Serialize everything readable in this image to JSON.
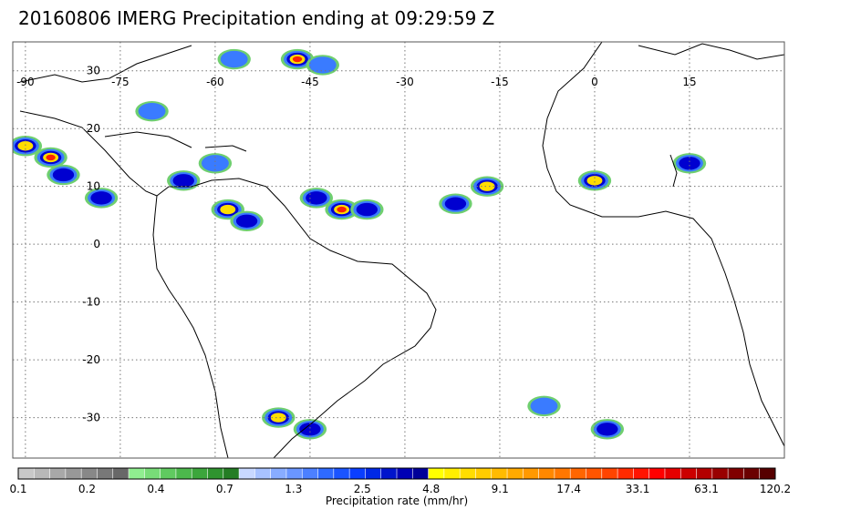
{
  "title": "20160806 IMERG Precipitation ending at 09:29:59 Z",
  "map": {
    "lon_labels": [
      "-90",
      "-75",
      "-60",
      "-45",
      "-30",
      "-15",
      "0",
      "15"
    ],
    "lat_labels": [
      "30",
      "20",
      "10",
      "0",
      "-10",
      "-20",
      "-30"
    ],
    "lon_values": [
      -90,
      -75,
      -60,
      -45,
      -30,
      -15,
      0,
      15
    ],
    "lat_values": [
      30,
      20,
      10,
      0,
      -10,
      -20,
      -30
    ],
    "lon_range": [
      -92,
      30
    ],
    "lat_range": [
      35,
      -37
    ],
    "land_color": "#ffffff",
    "coast_color": "#000000",
    "grid_color": "#777777"
  },
  "colorbar": {
    "label": "Precipitation rate (mm/hr)",
    "tick_labels": [
      "0.1",
      "0.2",
      "0.4",
      "0.7",
      "1.3",
      "2.5",
      "4.8",
      "9.1",
      "17.4",
      "33.1",
      "63.1",
      "120.2"
    ],
    "colors": [
      "#c8c8c8",
      "#b8b8b8",
      "#a8a8a8",
      "#989898",
      "#888888",
      "#787878",
      "#686868",
      "#90ee90",
      "#78dc78",
      "#60ca60",
      "#4cb84c",
      "#3ca63c",
      "#2f942f",
      "#247d24",
      "#c8d8ff",
      "#a8c2ff",
      "#88acff",
      "#6a96ff",
      "#4c80ff",
      "#2e6aff",
      "#1a54ff",
      "#0a3eff",
      "#0028e6",
      "#0014cc",
      "#0000b4",
      "#000099",
      "#ffff00",
      "#ffee00",
      "#ffdd00",
      "#ffcc00",
      "#ffbb00",
      "#ffaa00",
      "#ff9900",
      "#ff8800",
      "#ff7700",
      "#ff6600",
      "#ff5500",
      "#ff4400",
      "#ff2a00",
      "#ff1400",
      "#ff0000",
      "#e60000",
      "#cc0000",
      "#b30000",
      "#990000",
      "#800000",
      "#6b0000",
      "#560000"
    ]
  },
  "precip_cells": [
    {
      "lon": -90,
      "lat": 17,
      "intensity": 3
    },
    {
      "lon": -86,
      "lat": 15,
      "intensity": 4
    },
    {
      "lon": -84,
      "lat": 12,
      "intensity": 2
    },
    {
      "lon": -78,
      "lat": 8,
      "intensity": 2
    },
    {
      "lon": -65,
      "lat": 11,
      "intensity": 2
    },
    {
      "lon": -58,
      "lat": 6,
      "intensity": 3
    },
    {
      "lon": -55,
      "lat": 4,
      "intensity": 2
    },
    {
      "lon": -44,
      "lat": 8,
      "intensity": 2
    },
    {
      "lon": -40,
      "lat": 6,
      "intensity": 4
    },
    {
      "lon": -36,
      "lat": 6,
      "intensity": 2
    },
    {
      "lon": -22,
      "lat": 7,
      "intensity": 2
    },
    {
      "lon": -17,
      "lat": 10,
      "intensity": 3
    },
    {
      "lon": 0,
      "lat": 11,
      "intensity": 3
    },
    {
      "lon": 15,
      "lat": 14,
      "intensity": 2
    },
    {
      "lon": -60,
      "lat": 14,
      "intensity": 1
    },
    {
      "lon": -70,
      "lat": 23,
      "intensity": 1
    },
    {
      "lon": -47,
      "lat": 32,
      "intensity": 4
    },
    {
      "lon": -57,
      "lat": 32,
      "intensity": 1
    },
    {
      "lon": -43,
      "lat": 31,
      "intensity": 1
    },
    {
      "lon": -50,
      "lat": -30,
      "intensity": 3
    },
    {
      "lon": -45,
      "lat": -32,
      "intensity": 2
    },
    {
      "lon": 2,
      "lat": -32,
      "intensity": 2
    },
    {
      "lon": -8,
      "lat": -28,
      "intensity": 1
    }
  ]
}
